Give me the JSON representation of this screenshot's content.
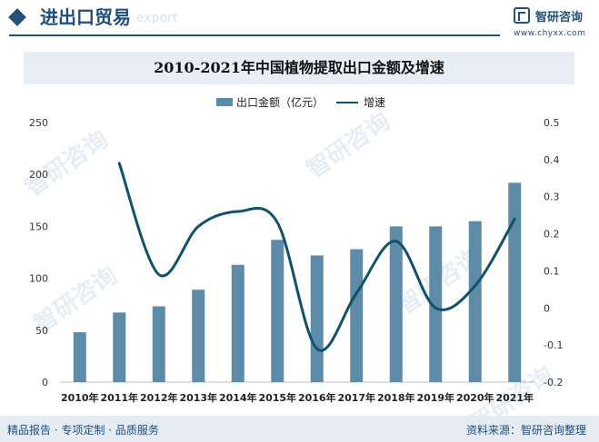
{
  "header": {
    "title": "进出口贸易",
    "ghost_text": "export"
  },
  "logo": {
    "name": "智研咨询",
    "url": "www.chyxx.com"
  },
  "watermarks": [
    "智研咨询",
    "智研咨询",
    "智研咨询",
    "智研咨询",
    "智研咨询"
  ],
  "footer": {
    "left": "精品报告 · 专项定制 · 品质服务",
    "right": "资料来源：智研咨询整理"
  },
  "colors": {
    "bar": "#5d8ba8",
    "line": "#10526a",
    "brand": "#1f4e79"
  },
  "chart_data": {
    "type": "bar",
    "title": "2010-2021年中国植物提取出口金额及增速",
    "categories": [
      "2010年",
      "2011年",
      "2012年",
      "2013年",
      "2014年",
      "2015年",
      "2016年",
      "2017年",
      "2018年",
      "2019年",
      "2020年",
      "2021年"
    ],
    "series": [
      {
        "name": "出口金额（亿元）",
        "type": "bar",
        "axis": "left",
        "values": [
          48,
          67,
          73,
          89,
          113,
          137,
          122,
          128,
          150,
          150,
          155,
          192
        ]
      },
      {
        "name": "增速",
        "type": "line",
        "axis": "right",
        "values": [
          null,
          0.39,
          0.09,
          0.22,
          0.26,
          0.23,
          -0.11,
          0.04,
          0.18,
          0.0,
          0.06,
          0.24
        ]
      }
    ],
    "ylim_left": [
      0,
      250
    ],
    "yticks_left": [
      "0",
      "50",
      "100",
      "150",
      "200",
      "250"
    ],
    "ylim_right": [
      -0.2,
      0.5
    ],
    "yticks_right": [
      "-0.2",
      "-0.1",
      "0",
      "0.1",
      "0.2",
      "0.3",
      "0.4",
      "0.5"
    ],
    "legend_position": "top-center",
    "grid": false
  }
}
